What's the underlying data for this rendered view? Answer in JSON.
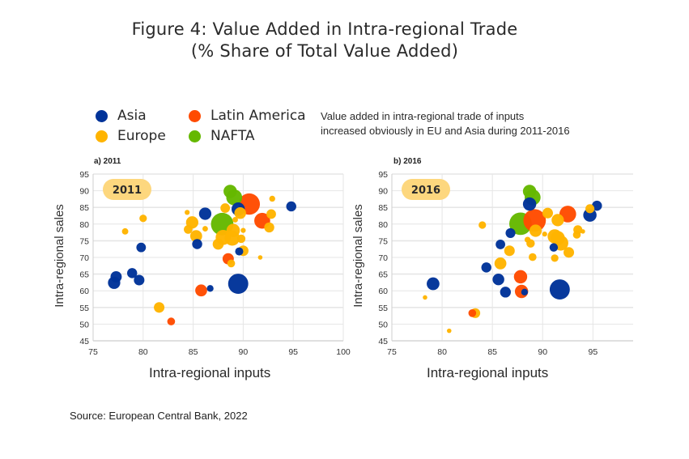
{
  "figure": {
    "title_line1": "Figure 4: Value Added in Intra-regional Trade",
    "title_line2": "(% Share of Total Value Added)",
    "note_line1": "Value added in intra-regional trade of inputs",
    "note_line2": "increased obviously in EU and Asia during 2011-2016",
    "source": "Source: European Central Bank, 2022"
  },
  "legend": [
    {
      "label": "Asia",
      "color": "#003399"
    },
    {
      "label": "Latin America",
      "color": "#ff4b00"
    },
    {
      "label": "Europe",
      "color": "#ffb400"
    },
    {
      "label": "NAFTA",
      "color": "#65b800"
    }
  ],
  "colors": {
    "Asia": "#003399",
    "Latin America": "#ff4b00",
    "Europe": "#ffb400",
    "NAFTA": "#65b800",
    "badge": "#fdd77e",
    "grid": "#e6e6e6"
  },
  "chart_data": [
    {
      "type": "scatter",
      "panel_label": "a) 2011",
      "badge": "2011",
      "xlabel": "Intra-regional inputs",
      "ylabel": "Intra-regional sales",
      "xlim": [
        75,
        100
      ],
      "ylim": [
        45,
        95
      ],
      "xticks": [
        "75",
        "80",
        "85",
        "90",
        "95",
        "100"
      ],
      "yticks": [
        "95",
        "90",
        "85",
        "80",
        "75",
        "70",
        "65",
        "60",
        "55",
        "50",
        "45"
      ],
      "grid": true,
      "points": [
        {
          "region": "NAFTA",
          "x": 87.9,
          "y": 80.0,
          "size": 10
        },
        {
          "region": "NAFTA",
          "x": 89.1,
          "y": 88.0,
          "size": 5
        },
        {
          "region": "NAFTA",
          "x": 88.7,
          "y": 89.8,
          "size": 3.5
        },
        {
          "region": "Latin America",
          "x": 90.6,
          "y": 86.0,
          "size": 9
        },
        {
          "region": "Latin America",
          "x": 91.9,
          "y": 81.0,
          "size": 5
        },
        {
          "region": "Latin America",
          "x": 88.5,
          "y": 69.6,
          "size": 2.5
        },
        {
          "region": "Latin America",
          "x": 85.8,
          "y": 60.1,
          "size": 2.8
        },
        {
          "region": "Latin America",
          "x": 82.8,
          "y": 50.8,
          "size": 1.2
        },
        {
          "region": "Asia",
          "x": 89.5,
          "y": 62.1,
          "size": 8
        },
        {
          "region": "Asia",
          "x": 89.5,
          "y": 84.5,
          "size": 3.5
        },
        {
          "region": "Asia",
          "x": 86.2,
          "y": 83.1,
          "size": 3
        },
        {
          "region": "Asia",
          "x": 94.8,
          "y": 85.3,
          "size": 2
        },
        {
          "region": "Asia",
          "x": 85.4,
          "y": 74.0,
          "size": 2
        },
        {
          "region": "Asia",
          "x": 79.8,
          "y": 73.0,
          "size": 1.8
        },
        {
          "region": "Asia",
          "x": 77.1,
          "y": 62.4,
          "size": 3
        },
        {
          "region": "Asia",
          "x": 77.3,
          "y": 64.2,
          "size": 2.5
        },
        {
          "region": "Asia",
          "x": 78.9,
          "y": 65.3,
          "size": 2
        },
        {
          "region": "Asia",
          "x": 79.6,
          "y": 63.2,
          "size": 2.2
        },
        {
          "region": "Asia",
          "x": 89.6,
          "y": 71.8,
          "size": 1.3
        },
        {
          "region": "Asia",
          "x": 86.7,
          "y": 60.7,
          "size": 0.9
        },
        {
          "region": "Europe",
          "x": 88.0,
          "y": 76.0,
          "size": 4.5
        },
        {
          "region": "Europe",
          "x": 88.9,
          "y": 75.8,
          "size": 4.5
        },
        {
          "region": "Europe",
          "x": 89.0,
          "y": 78.1,
          "size": 3.5
        },
        {
          "region": "Europe",
          "x": 84.9,
          "y": 80.5,
          "size": 3
        },
        {
          "region": "Europe",
          "x": 85.3,
          "y": 76.4,
          "size": 2.8
        },
        {
          "region": "Europe",
          "x": 87.5,
          "y": 74.0,
          "size": 2.4
        },
        {
          "region": "Europe",
          "x": 89.7,
          "y": 83.3,
          "size": 2.7
        },
        {
          "region": "Europe",
          "x": 90.0,
          "y": 72.0,
          "size": 2.2
        },
        {
          "region": "Europe",
          "x": 88.2,
          "y": 84.8,
          "size": 1.8
        },
        {
          "region": "Europe",
          "x": 84.5,
          "y": 78.4,
          "size": 1.5
        },
        {
          "region": "Europe",
          "x": 92.6,
          "y": 79.0,
          "size": 2
        },
        {
          "region": "Europe",
          "x": 92.8,
          "y": 83.0,
          "size": 1.8
        },
        {
          "region": "Europe",
          "x": 89.8,
          "y": 75.6,
          "size": 1.4
        },
        {
          "region": "Europe",
          "x": 81.6,
          "y": 55.0,
          "size": 2.2
        },
        {
          "region": "Europe",
          "x": 88.8,
          "y": 68.2,
          "size": 1.2
        },
        {
          "region": "Europe",
          "x": 80.0,
          "y": 81.7,
          "size": 1.1
        },
        {
          "region": "Europe",
          "x": 78.2,
          "y": 77.8,
          "size": 0.8
        },
        {
          "region": "Europe",
          "x": 92.9,
          "y": 87.6,
          "size": 0.7
        },
        {
          "region": "Europe",
          "x": 84.4,
          "y": 83.5,
          "size": 0.5
        },
        {
          "region": "Europe",
          "x": 86.2,
          "y": 78.6,
          "size": 0.6
        },
        {
          "region": "Europe",
          "x": 89.2,
          "y": 81.3,
          "size": 0.6
        },
        {
          "region": "Europe",
          "x": 90.0,
          "y": 78.1,
          "size": 0.5
        },
        {
          "region": "Europe",
          "x": 91.7,
          "y": 70.0,
          "size": 0.4
        }
      ]
    },
    {
      "type": "scatter",
      "panel_label": "b) 2016",
      "badge": "2016",
      "xlabel": "Intra-regional inputs",
      "ylabel": "Intra-regional sales",
      "xlim": [
        75,
        99
      ],
      "ylim": [
        45,
        95
      ],
      "xticks": [
        "75",
        "80",
        "85",
        "90",
        "95"
      ],
      "yticks": [
        "95",
        "90",
        "85",
        "80",
        "75",
        "70",
        "65",
        "60",
        "55",
        "50",
        "45"
      ],
      "grid": true,
      "points": [
        {
          "region": "NAFTA",
          "x": 87.8,
          "y": 80.1,
          "size": 10
        },
        {
          "region": "NAFTA",
          "x": 89.0,
          "y": 88.0,
          "size": 5
        },
        {
          "region": "NAFTA",
          "x": 88.7,
          "y": 89.8,
          "size": 3.5
        },
        {
          "region": "Latin America",
          "x": 89.2,
          "y": 81.1,
          "size": 10
        },
        {
          "region": "Latin America",
          "x": 92.5,
          "y": 83.0,
          "size": 5.5
        },
        {
          "region": "Latin America",
          "x": 87.8,
          "y": 64.2,
          "size": 3.5
        },
        {
          "region": "Latin America",
          "x": 87.9,
          "y": 59.8,
          "size": 3.5
        },
        {
          "region": "Latin America",
          "x": 83.0,
          "y": 53.3,
          "size": 1.2
        },
        {
          "region": "Asia",
          "x": 91.7,
          "y": 60.4,
          "size": 8
        },
        {
          "region": "Asia",
          "x": 88.7,
          "y": 86.0,
          "size": 3.5
        },
        {
          "region": "Asia",
          "x": 94.7,
          "y": 82.7,
          "size": 3.5
        },
        {
          "region": "Asia",
          "x": 95.4,
          "y": 85.5,
          "size": 2
        },
        {
          "region": "Asia",
          "x": 79.1,
          "y": 62.1,
          "size": 3.2
        },
        {
          "region": "Asia",
          "x": 85.6,
          "y": 63.4,
          "size": 2.7
        },
        {
          "region": "Asia",
          "x": 86.3,
          "y": 59.6,
          "size": 2.3
        },
        {
          "region": "Asia",
          "x": 84.4,
          "y": 67.0,
          "size": 2
        },
        {
          "region": "Asia",
          "x": 85.8,
          "y": 73.9,
          "size": 1.8
        },
        {
          "region": "Asia",
          "x": 86.8,
          "y": 77.3,
          "size": 1.9
        },
        {
          "region": "Asia",
          "x": 91.1,
          "y": 73.0,
          "size": 1.4
        },
        {
          "region": "Asia",
          "x": 88.2,
          "y": 59.6,
          "size": 0.9
        },
        {
          "region": "Europe",
          "x": 91.2,
          "y": 76.3,
          "size": 4
        },
        {
          "region": "Europe",
          "x": 91.8,
          "y": 74.3,
          "size": 4.5
        },
        {
          "region": "Europe",
          "x": 91.5,
          "y": 75.8,
          "size": 4
        },
        {
          "region": "Europe",
          "x": 89.3,
          "y": 78.0,
          "size": 3
        },
        {
          "region": "Europe",
          "x": 91.5,
          "y": 81.2,
          "size": 3
        },
        {
          "region": "Europe",
          "x": 90.5,
          "y": 83.3,
          "size": 2.2
        },
        {
          "region": "Europe",
          "x": 85.8,
          "y": 68.2,
          "size": 2.8
        },
        {
          "region": "Europe",
          "x": 86.7,
          "y": 72.0,
          "size": 2.2
        },
        {
          "region": "Europe",
          "x": 92.6,
          "y": 71.5,
          "size": 2.2
        },
        {
          "region": "Europe",
          "x": 93.5,
          "y": 78.3,
          "size": 1.6
        },
        {
          "region": "Europe",
          "x": 94.7,
          "y": 84.6,
          "size": 1.6
        },
        {
          "region": "Europe",
          "x": 93.4,
          "y": 76.8,
          "size": 1.2
        },
        {
          "region": "Europe",
          "x": 88.8,
          "y": 74.2,
          "size": 1.4
        },
        {
          "region": "Europe",
          "x": 89.0,
          "y": 70.1,
          "size": 1.2
        },
        {
          "region": "Europe",
          "x": 91.2,
          "y": 69.8,
          "size": 1.1
        },
        {
          "region": "Europe",
          "x": 83.3,
          "y": 53.3,
          "size": 1.9
        },
        {
          "region": "Europe",
          "x": 84.0,
          "y": 79.7,
          "size": 1.1
        },
        {
          "region": "Europe",
          "x": 88.5,
          "y": 75.3,
          "size": 0.7
        },
        {
          "region": "Europe",
          "x": 90.2,
          "y": 77.0,
          "size": 0.5
        },
        {
          "region": "Europe",
          "x": 94.0,
          "y": 77.8,
          "size": 0.4
        },
        {
          "region": "Europe",
          "x": 78.3,
          "y": 58.0,
          "size": 0.4
        },
        {
          "region": "Europe",
          "x": 80.7,
          "y": 48.0,
          "size": 0.4
        }
      ]
    }
  ]
}
